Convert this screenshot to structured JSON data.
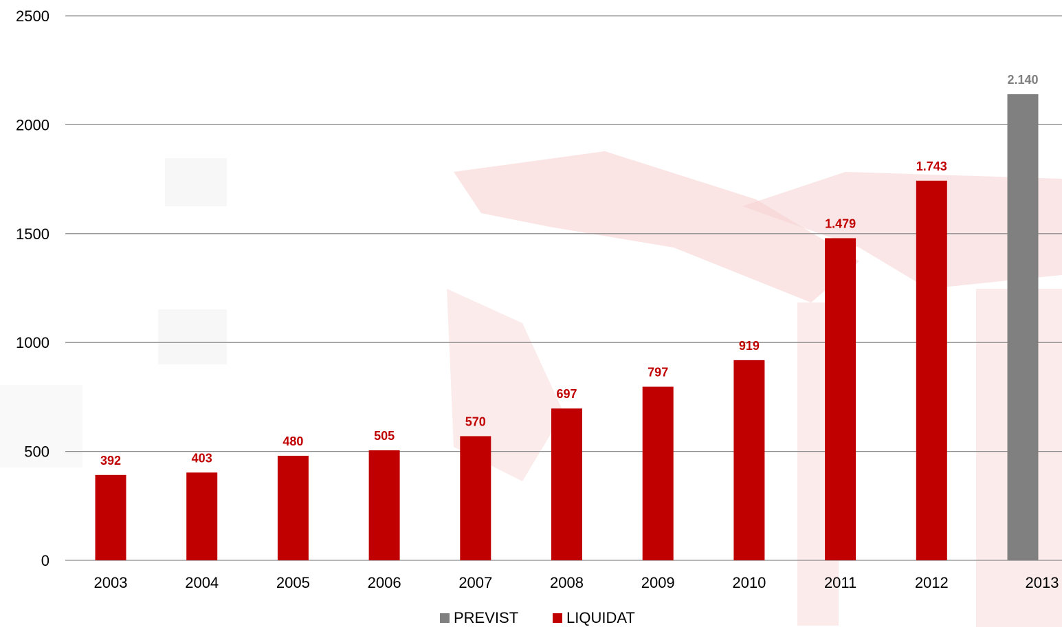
{
  "chart_data": {
    "type": "bar",
    "categories": [
      "2003",
      "2004",
      "2005",
      "2006",
      "2007",
      "2008",
      "2009",
      "2010",
      "2011",
      "2012",
      "2013"
    ],
    "series": [
      {
        "name": "LIQUIDAT",
        "color": "#c00000",
        "values": [
          392,
          403,
          480,
          505,
          570,
          697,
          797,
          919,
          1479,
          1743,
          null
        ],
        "labels": [
          "392",
          "403",
          "480",
          "505",
          "570",
          "697",
          "797",
          "919",
          "1.479",
          "1.743",
          ""
        ]
      },
      {
        "name": "PREVIST",
        "color": "#808080",
        "values": [
          null,
          null,
          null,
          null,
          null,
          null,
          null,
          null,
          null,
          null,
          2140
        ],
        "labels": [
          "",
          "",
          "",
          "",
          "",
          "",
          "",
          "",
          "",
          "",
          "2.140"
        ]
      }
    ],
    "title": "",
    "xlabel": "",
    "ylabel": "",
    "ylim": [
      0,
      2500
    ],
    "yticks": [
      "0",
      "500",
      "1000",
      "1500",
      "2000",
      "2500"
    ],
    "grid": true,
    "legend": {
      "placement": "bottom-center",
      "entries": [
        {
          "name": "PREVIST",
          "color": "#808080"
        },
        {
          "name": "LIQUIDAT",
          "color": "#c00000"
        }
      ]
    },
    "watermark": {
      "color": "#f6d2d2"
    }
  }
}
